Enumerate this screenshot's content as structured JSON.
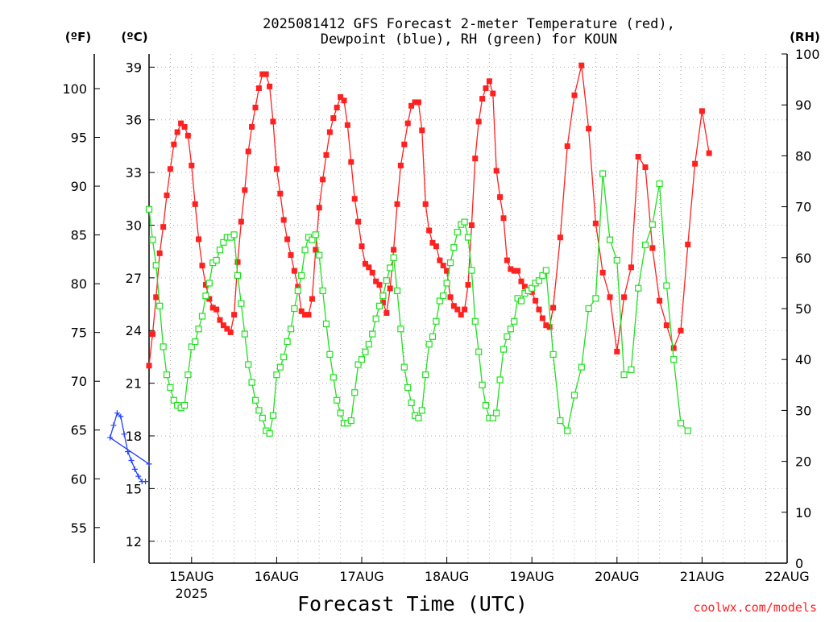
{
  "chart_data": {
    "type": "line",
    "title_line1": "2025081412 GFS Forecast 2-meter Temperature (red),",
    "title_line2": "Dewpoint (blue), RH (green) for KOUN",
    "xlabel": "Forecast Time (UTC)",
    "credit": "coolwx.com/models",
    "units": {
      "fahrenheit": "(ºF)",
      "celsius": "(ºC)",
      "rh": "(RH)"
    },
    "x_range_days": [
      14.5,
      22.0
    ],
    "celsius_axis": {
      "range": [
        10.75,
        39.75
      ],
      "ticks": [
        12,
        15,
        18,
        21,
        24,
        27,
        30,
        33,
        36,
        39
      ]
    },
    "fahrenheit_axis": {
      "ticks": [
        55,
        60,
        65,
        70,
        75,
        80,
        85,
        90,
        95,
        100
      ]
    },
    "rh_axis": {
      "range": [
        0,
        100
      ],
      "ticks": [
        0,
        10,
        20,
        30,
        40,
        50,
        60,
        70,
        80,
        90,
        100
      ]
    },
    "x_ticks": [
      {
        "day": 15,
        "label": "15AUG",
        "sub": "2025"
      },
      {
        "day": 16,
        "label": "16AUG",
        "sub": ""
      },
      {
        "day": 17,
        "label": "17AUG",
        "sub": ""
      },
      {
        "day": 18,
        "label": "18AUG",
        "sub": ""
      },
      {
        "day": 19,
        "label": "19AUG",
        "sub": ""
      },
      {
        "day": 20,
        "label": "20AUG",
        "sub": ""
      },
      {
        "day": 21,
        "label": "21AUG",
        "sub": ""
      },
      {
        "day": 22,
        "label": "22AUG",
        "sub": ""
      }
    ],
    "grid": true,
    "series": [
      {
        "name": "Temperature",
        "unit": "C",
        "color": "#ff2020",
        "marker": "filled-square",
        "points": [
          [
            14.5,
            22.0
          ],
          [
            14.542,
            23.8
          ],
          [
            14.583,
            25.9
          ],
          [
            14.625,
            28.4
          ],
          [
            14.667,
            29.9
          ],
          [
            14.708,
            31.7
          ],
          [
            14.75,
            33.2
          ],
          [
            14.792,
            34.6
          ],
          [
            14.833,
            35.3
          ],
          [
            14.875,
            35.8
          ],
          [
            14.917,
            35.6
          ],
          [
            14.958,
            35.1
          ],
          [
            15.0,
            33.4
          ],
          [
            15.042,
            31.2
          ],
          [
            15.083,
            29.2
          ],
          [
            15.125,
            27.7
          ],
          [
            15.167,
            26.6
          ],
          [
            15.208,
            25.8
          ],
          [
            15.25,
            25.3
          ],
          [
            15.292,
            25.2
          ],
          [
            15.333,
            24.6
          ],
          [
            15.375,
            24.3
          ],
          [
            15.417,
            24.1
          ],
          [
            15.458,
            23.9
          ],
          [
            15.5,
            24.9
          ],
          [
            15.542,
            27.9
          ],
          [
            15.583,
            30.2
          ],
          [
            15.625,
            32.0
          ],
          [
            15.667,
            34.2
          ],
          [
            15.708,
            35.6
          ],
          [
            15.75,
            36.7
          ],
          [
            15.792,
            37.8
          ],
          [
            15.833,
            38.6
          ],
          [
            15.875,
            38.6
          ],
          [
            15.917,
            37.9
          ],
          [
            15.958,
            35.9
          ],
          [
            16.0,
            33.2
          ],
          [
            16.042,
            31.8
          ],
          [
            16.083,
            30.3
          ],
          [
            16.125,
            29.2
          ],
          [
            16.167,
            28.3
          ],
          [
            16.208,
            27.4
          ],
          [
            16.25,
            26.5
          ],
          [
            16.292,
            25.1
          ],
          [
            16.333,
            24.9
          ],
          [
            16.375,
            24.9
          ],
          [
            16.417,
            25.8
          ],
          [
            16.458,
            28.6
          ],
          [
            16.5,
            31.0
          ],
          [
            16.542,
            32.6
          ],
          [
            16.583,
            34.0
          ],
          [
            16.625,
            35.3
          ],
          [
            16.667,
            36.1
          ],
          [
            16.708,
            36.7
          ],
          [
            16.75,
            37.3
          ],
          [
            16.792,
            37.1
          ],
          [
            16.833,
            35.7
          ],
          [
            16.875,
            33.6
          ],
          [
            16.917,
            31.5
          ],
          [
            16.958,
            30.2
          ],
          [
            17.0,
            28.8
          ],
          [
            17.042,
            27.8
          ],
          [
            17.083,
            27.6
          ],
          [
            17.125,
            27.3
          ],
          [
            17.167,
            26.8
          ],
          [
            17.208,
            26.6
          ],
          [
            17.25,
            25.6
          ],
          [
            17.292,
            25.0
          ],
          [
            17.333,
            26.4
          ],
          [
            17.375,
            28.6
          ],
          [
            17.417,
            31.2
          ],
          [
            17.458,
            33.4
          ],
          [
            17.5,
            34.6
          ],
          [
            17.542,
            35.8
          ],
          [
            17.583,
            36.8
          ],
          [
            17.625,
            37.0
          ],
          [
            17.667,
            37.0
          ],
          [
            17.708,
            35.4
          ],
          [
            17.75,
            31.2
          ],
          [
            17.792,
            29.7
          ],
          [
            17.833,
            29.0
          ],
          [
            17.875,
            28.8
          ],
          [
            17.917,
            28.0
          ],
          [
            17.958,
            27.7
          ],
          [
            18.0,
            27.4
          ],
          [
            18.042,
            25.9
          ],
          [
            18.083,
            25.4
          ],
          [
            18.125,
            25.2
          ],
          [
            18.167,
            24.9
          ],
          [
            18.208,
            25.2
          ],
          [
            18.25,
            26.6
          ],
          [
            18.292,
            30.0
          ],
          [
            18.333,
            33.8
          ],
          [
            18.375,
            35.9
          ],
          [
            18.417,
            37.2
          ],
          [
            18.458,
            37.8
          ],
          [
            18.5,
            38.2
          ],
          [
            18.542,
            37.5
          ],
          [
            18.583,
            33.1
          ],
          [
            18.625,
            31.6
          ],
          [
            18.667,
            30.4
          ],
          [
            18.708,
            28.0
          ],
          [
            18.75,
            27.5
          ],
          [
            18.792,
            27.4
          ],
          [
            18.833,
            27.4
          ],
          [
            18.875,
            26.8
          ],
          [
            18.917,
            26.5
          ],
          [
            18.958,
            26.3
          ],
          [
            19.0,
            26.2
          ],
          [
            19.042,
            25.7
          ],
          [
            19.083,
            25.2
          ],
          [
            19.125,
            24.7
          ],
          [
            19.167,
            24.3
          ],
          [
            19.208,
            24.2
          ],
          [
            19.25,
            25.3
          ],
          [
            19.333,
            29.3
          ],
          [
            19.417,
            34.5
          ],
          [
            19.5,
            37.4
          ],
          [
            19.583,
            39.1
          ],
          [
            19.667,
            35.5
          ],
          [
            19.75,
            30.1
          ],
          [
            19.833,
            27.3
          ],
          [
            19.917,
            25.9
          ],
          [
            20.0,
            22.8
          ],
          [
            20.083,
            25.9
          ],
          [
            20.167,
            27.6
          ],
          [
            20.25,
            33.9
          ],
          [
            20.333,
            33.3
          ],
          [
            20.417,
            28.7
          ],
          [
            20.5,
            25.7
          ],
          [
            20.583,
            24.3
          ],
          [
            20.667,
            23.0
          ],
          [
            20.75,
            24.0
          ],
          [
            20.833,
            28.9
          ],
          [
            20.917,
            33.5
          ],
          [
            21.0,
            36.5
          ],
          [
            21.083,
            34.1
          ]
        ]
      },
      {
        "name": "Dewpoint",
        "unit": "C",
        "color": "#2040ff",
        "marker": "plus",
        "points": [
          [
            14.5,
            16.4
          ],
          [
            14.042,
            17.9
          ],
          [
            14.083,
            18.6
          ],
          [
            14.125,
            19.3
          ],
          [
            14.167,
            19.1
          ],
          [
            14.208,
            18.1
          ],
          [
            14.25,
            17.1
          ],
          [
            14.292,
            16.6
          ],
          [
            14.333,
            16.1
          ],
          [
            14.375,
            15.7
          ],
          [
            14.417,
            15.4
          ],
          [
            14.458,
            15.4
          ]
        ]
      },
      {
        "name": "RH",
        "unit": "%",
        "color": "#20e020",
        "marker": "open-square",
        "points": [
          [
            14.5,
            69.5
          ],
          [
            14.542,
            63.5
          ],
          [
            14.583,
            58.5
          ],
          [
            14.625,
            50.5
          ],
          [
            14.667,
            42.5
          ],
          [
            14.708,
            37.0
          ],
          [
            14.75,
            34.5
          ],
          [
            14.792,
            32.0
          ],
          [
            14.833,
            31.0
          ],
          [
            14.875,
            30.5
          ],
          [
            14.917,
            31.0
          ],
          [
            14.958,
            37.0
          ],
          [
            15.0,
            42.5
          ],
          [
            15.042,
            43.5
          ],
          [
            15.083,
            46.0
          ],
          [
            15.125,
            48.5
          ],
          [
            15.167,
            52.5
          ],
          [
            15.208,
            55.0
          ],
          [
            15.25,
            59.0
          ],
          [
            15.292,
            59.5
          ],
          [
            15.333,
            61.5
          ],
          [
            15.375,
            63.0
          ],
          [
            15.417,
            64.0
          ],
          [
            15.458,
            64.0
          ],
          [
            15.5,
            64.5
          ],
          [
            15.542,
            56.5
          ],
          [
            15.583,
            51.0
          ],
          [
            15.625,
            45.0
          ],
          [
            15.667,
            39.0
          ],
          [
            15.708,
            35.5
          ],
          [
            15.75,
            32.0
          ],
          [
            15.792,
            30.0
          ],
          [
            15.833,
            28.5
          ],
          [
            15.875,
            26.0
          ],
          [
            15.917,
            25.5
          ],
          [
            15.958,
            29.0
          ],
          [
            16.0,
            37.0
          ],
          [
            16.042,
            38.5
          ],
          [
            16.083,
            40.5
          ],
          [
            16.125,
            43.5
          ],
          [
            16.167,
            46.0
          ],
          [
            16.208,
            50.0
          ],
          [
            16.25,
            53.5
          ],
          [
            16.292,
            56.5
          ],
          [
            16.333,
            61.5
          ],
          [
            16.375,
            64.0
          ],
          [
            16.417,
            63.5
          ],
          [
            16.458,
            64.5
          ],
          [
            16.5,
            60.5
          ],
          [
            16.542,
            53.5
          ],
          [
            16.583,
            47.0
          ],
          [
            16.625,
            41.0
          ],
          [
            16.667,
            36.5
          ],
          [
            16.708,
            32.0
          ],
          [
            16.75,
            29.5
          ],
          [
            16.792,
            27.5
          ],
          [
            16.833,
            27.5
          ],
          [
            16.875,
            28.0
          ],
          [
            16.917,
            33.5
          ],
          [
            16.958,
            39.0
          ],
          [
            17.0,
            40.0
          ],
          [
            17.042,
            41.5
          ],
          [
            17.083,
            43.0
          ],
          [
            17.125,
            45.0
          ],
          [
            17.167,
            48.0
          ],
          [
            17.208,
            50.5
          ],
          [
            17.25,
            52.5
          ],
          [
            17.292,
            55.5
          ],
          [
            17.333,
            58.0
          ],
          [
            17.375,
            60.0
          ],
          [
            17.417,
            53.5
          ],
          [
            17.458,
            46.0
          ],
          [
            17.5,
            38.5
          ],
          [
            17.542,
            34.5
          ],
          [
            17.583,
            31.5
          ],
          [
            17.625,
            29.0
          ],
          [
            17.667,
            28.5
          ],
          [
            17.708,
            30.0
          ],
          [
            17.75,
            37.0
          ],
          [
            17.792,
            43.0
          ],
          [
            17.833,
            44.5
          ],
          [
            17.875,
            47.5
          ],
          [
            17.917,
            51.5
          ],
          [
            17.958,
            52.5
          ],
          [
            18.0,
            55.0
          ],
          [
            18.042,
            59.0
          ],
          [
            18.083,
            62.0
          ],
          [
            18.125,
            65.0
          ],
          [
            18.167,
            66.5
          ],
          [
            18.208,
            67.0
          ],
          [
            18.25,
            64.0
          ],
          [
            18.292,
            57.5
          ],
          [
            18.333,
            47.5
          ],
          [
            18.375,
            41.5
          ],
          [
            18.417,
            35.0
          ],
          [
            18.458,
            31.0
          ],
          [
            18.5,
            28.5
          ],
          [
            18.542,
            28.5
          ],
          [
            18.583,
            29.5
          ],
          [
            18.625,
            36.0
          ],
          [
            18.667,
            42.0
          ],
          [
            18.708,
            44.5
          ],
          [
            18.75,
            46.0
          ],
          [
            18.792,
            47.5
          ],
          [
            18.833,
            52.0
          ],
          [
            18.875,
            51.5
          ],
          [
            18.917,
            53.0
          ],
          [
            18.958,
            53.5
          ],
          [
            19.0,
            54.0
          ],
          [
            19.042,
            55.0
          ],
          [
            19.083,
            55.5
          ],
          [
            19.125,
            56.5
          ],
          [
            19.167,
            57.5
          ],
          [
            19.25,
            41.0
          ],
          [
            19.333,
            28.0
          ],
          [
            19.417,
            26.0
          ],
          [
            19.5,
            33.0
          ],
          [
            19.583,
            38.5
          ],
          [
            19.667,
            50.0
          ],
          [
            19.75,
            52.0
          ],
          [
            19.833,
            76.5
          ],
          [
            19.917,
            63.5
          ],
          [
            20.0,
            59.5
          ],
          [
            20.083,
            37.0
          ],
          [
            20.167,
            38.0
          ],
          [
            20.25,
            54.0
          ],
          [
            20.333,
            62.5
          ],
          [
            20.417,
            66.5
          ],
          [
            20.5,
            74.5
          ],
          [
            20.583,
            54.5
          ],
          [
            20.667,
            40.0
          ],
          [
            20.75,
            27.5
          ],
          [
            20.833,
            26.0
          ]
        ]
      }
    ]
  }
}
